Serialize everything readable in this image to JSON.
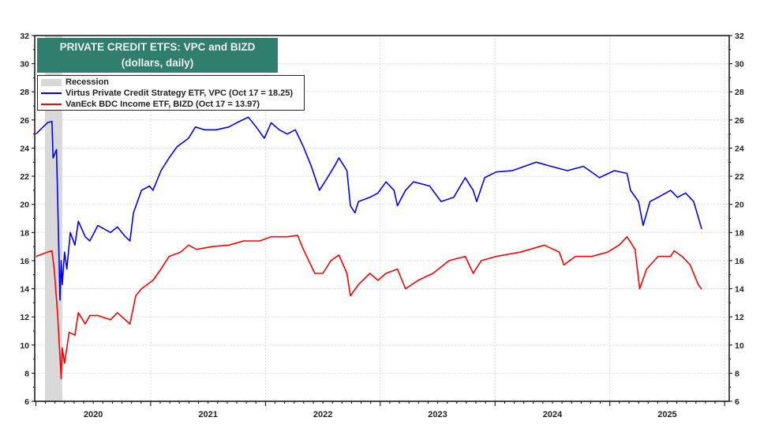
{
  "chart_data": {
    "type": "line",
    "title": "PRIVATE CREDIT ETFS: VPC and BIZD",
    "subtitle": "(dollars, daily)",
    "xlabel": "",
    "ylabel": "",
    "xlim": [
      2019.99,
      2026.04
    ],
    "ylim": [
      6,
      32
    ],
    "yticks": [
      6,
      8,
      10,
      12,
      14,
      16,
      18,
      20,
      22,
      24,
      26,
      28,
      30,
      32
    ],
    "xtick_labels": [
      "2020",
      "2021",
      "2022",
      "2023",
      "2024",
      "2025"
    ],
    "grid": true,
    "axes_right_mirror": true,
    "legend_placement": "top-left",
    "recession": {
      "label": "Recession",
      "start": 2020.08,
      "end": 2020.23,
      "color": "#d9d9d9"
    },
    "series": [
      {
        "name": "Virtus Private Credit Strategy ETF, VPC (Oct 17 = 18.25)",
        "color": "#0000ff",
        "points": [
          [
            2020.0,
            25.0
          ],
          [
            2020.1,
            25.8
          ],
          [
            2020.14,
            25.9
          ],
          [
            2020.15,
            23.3
          ],
          [
            2020.18,
            23.9
          ],
          [
            2020.21,
            13.2
          ],
          [
            2020.22,
            16.0
          ],
          [
            2020.23,
            14.3
          ],
          [
            2020.25,
            16.6
          ],
          [
            2020.27,
            15.4
          ],
          [
            2020.3,
            18.0
          ],
          [
            2020.34,
            17.1
          ],
          [
            2020.37,
            18.8
          ],
          [
            2020.43,
            17.7
          ],
          [
            2020.47,
            17.4
          ],
          [
            2020.54,
            18.5
          ],
          [
            2020.65,
            18.0
          ],
          [
            2020.71,
            18.4
          ],
          [
            2020.78,
            17.7
          ],
          [
            2020.82,
            17.4
          ],
          [
            2020.85,
            19.4
          ],
          [
            2020.92,
            21.0
          ],
          [
            2020.99,
            21.3
          ],
          [
            2021.02,
            21.0
          ],
          [
            2021.09,
            22.4
          ],
          [
            2021.16,
            23.3
          ],
          [
            2021.23,
            24.1
          ],
          [
            2021.33,
            24.7
          ],
          [
            2021.39,
            25.5
          ],
          [
            2021.47,
            25.3
          ],
          [
            2021.57,
            25.3
          ],
          [
            2021.68,
            25.5
          ],
          [
            2021.75,
            25.8
          ],
          [
            2021.85,
            26.2
          ],
          [
            2021.92,
            25.5
          ],
          [
            2021.99,
            24.7
          ],
          [
            2022.05,
            25.8
          ],
          [
            2022.12,
            25.3
          ],
          [
            2022.19,
            25.0
          ],
          [
            2022.26,
            25.3
          ],
          [
            2022.33,
            24.1
          ],
          [
            2022.4,
            22.7
          ],
          [
            2022.47,
            21.0
          ],
          [
            2022.54,
            21.9
          ],
          [
            2022.6,
            22.7
          ],
          [
            2022.64,
            23.3
          ],
          [
            2022.71,
            22.4
          ],
          [
            2022.74,
            19.9
          ],
          [
            2022.78,
            19.4
          ],
          [
            2022.81,
            20.2
          ],
          [
            2022.91,
            20.5
          ],
          [
            2022.98,
            20.8
          ],
          [
            2023.05,
            21.6
          ],
          [
            2023.12,
            21.0
          ],
          [
            2023.15,
            19.9
          ],
          [
            2023.22,
            21.0
          ],
          [
            2023.29,
            21.6
          ],
          [
            2023.43,
            21.3
          ],
          [
            2023.53,
            20.2
          ],
          [
            2023.64,
            20.5
          ],
          [
            2023.74,
            21.9
          ],
          [
            2023.81,
            21.0
          ],
          [
            2023.84,
            20.2
          ],
          [
            2023.91,
            21.9
          ],
          [
            2024.01,
            22.3
          ],
          [
            2024.15,
            22.4
          ],
          [
            2024.36,
            23.0
          ],
          [
            2024.49,
            22.7
          ],
          [
            2024.63,
            22.4
          ],
          [
            2024.77,
            22.7
          ],
          [
            2024.91,
            21.9
          ],
          [
            2025.04,
            22.4
          ],
          [
            2025.15,
            22.2
          ],
          [
            2025.18,
            21.0
          ],
          [
            2025.25,
            20.2
          ],
          [
            2025.29,
            18.5
          ],
          [
            2025.35,
            20.2
          ],
          [
            2025.42,
            20.5
          ],
          [
            2025.53,
            21.0
          ],
          [
            2025.59,
            20.5
          ],
          [
            2025.66,
            20.8
          ],
          [
            2025.73,
            20.2
          ],
          [
            2025.77,
            19.1
          ],
          [
            2025.8,
            18.25
          ]
        ]
      },
      {
        "name": "VanEck BDC Income ETF, BIZD (Oct 17 = 13.97)",
        "color": "#ff0000",
        "points": [
          [
            2020.0,
            16.3
          ],
          [
            2020.1,
            16.6
          ],
          [
            2020.14,
            16.7
          ],
          [
            2020.16,
            15.4
          ],
          [
            2020.19,
            12.1
          ],
          [
            2020.22,
            7.6
          ],
          [
            2020.23,
            9.8
          ],
          [
            2020.25,
            8.7
          ],
          [
            2020.29,
            10.9
          ],
          [
            2020.34,
            10.7
          ],
          [
            2020.37,
            12.3
          ],
          [
            2020.43,
            11.5
          ],
          [
            2020.47,
            12.1
          ],
          [
            2020.54,
            12.1
          ],
          [
            2020.65,
            11.8
          ],
          [
            2020.71,
            12.3
          ],
          [
            2020.82,
            11.5
          ],
          [
            2020.87,
            13.5
          ],
          [
            2020.92,
            14.0
          ],
          [
            2021.02,
            14.6
          ],
          [
            2021.09,
            15.4
          ],
          [
            2021.16,
            16.3
          ],
          [
            2021.26,
            16.6
          ],
          [
            2021.33,
            17.1
          ],
          [
            2021.4,
            16.8
          ],
          [
            2021.54,
            17.0
          ],
          [
            2021.68,
            17.1
          ],
          [
            2021.81,
            17.4
          ],
          [
            2021.95,
            17.4
          ],
          [
            2022.05,
            17.7
          ],
          [
            2022.19,
            17.7
          ],
          [
            2022.28,
            17.8
          ],
          [
            2022.33,
            16.8
          ],
          [
            2022.43,
            15.1
          ],
          [
            2022.5,
            15.1
          ],
          [
            2022.57,
            16.0
          ],
          [
            2022.64,
            16.4
          ],
          [
            2022.71,
            15.1
          ],
          [
            2022.74,
            13.5
          ],
          [
            2022.81,
            14.3
          ],
          [
            2022.91,
            15.1
          ],
          [
            2022.98,
            14.6
          ],
          [
            2023.05,
            15.1
          ],
          [
            2023.15,
            15.4
          ],
          [
            2023.22,
            14.0
          ],
          [
            2023.33,
            14.6
          ],
          [
            2023.46,
            15.1
          ],
          [
            2023.6,
            16.0
          ],
          [
            2023.74,
            16.3
          ],
          [
            2023.81,
            15.1
          ],
          [
            2023.88,
            16.0
          ],
          [
            2024.01,
            16.3
          ],
          [
            2024.22,
            16.6
          ],
          [
            2024.43,
            17.1
          ],
          [
            2024.56,
            16.6
          ],
          [
            2024.6,
            15.7
          ],
          [
            2024.7,
            16.3
          ],
          [
            2024.84,
            16.3
          ],
          [
            2024.98,
            16.6
          ],
          [
            2025.08,
            17.1
          ],
          [
            2025.15,
            17.7
          ],
          [
            2025.22,
            16.8
          ],
          [
            2025.26,
            14.0
          ],
          [
            2025.32,
            15.4
          ],
          [
            2025.42,
            16.3
          ],
          [
            2025.53,
            16.3
          ],
          [
            2025.56,
            16.7
          ],
          [
            2025.63,
            16.3
          ],
          [
            2025.7,
            15.7
          ],
          [
            2025.77,
            14.3
          ],
          [
            2025.8,
            13.97
          ]
        ]
      }
    ]
  }
}
